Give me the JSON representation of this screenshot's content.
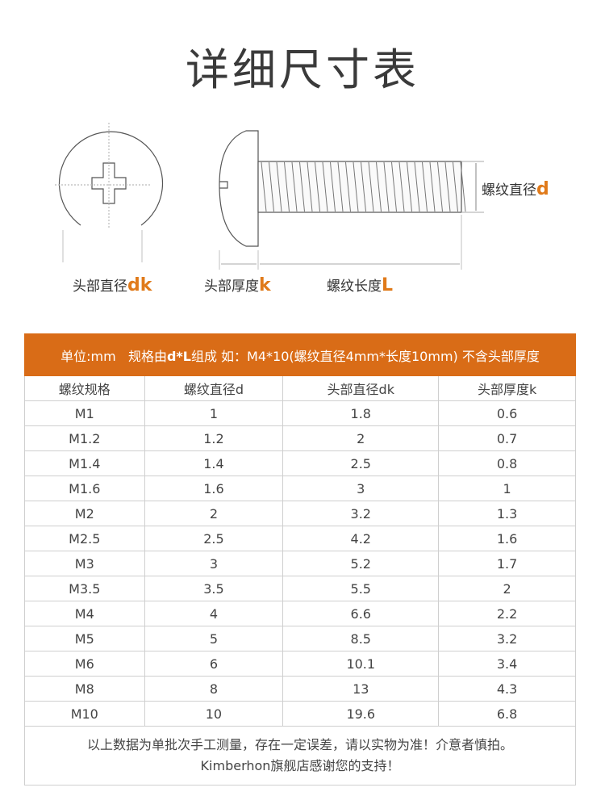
{
  "title": "详细尺寸表",
  "diagram": {
    "head_diameter_label": "头部直径",
    "head_diameter_symbol": "dk",
    "head_thickness_label": "头部厚度",
    "head_thickness_symbol": "k",
    "thread_length_label": "螺纹长度",
    "thread_length_symbol": "L",
    "thread_diameter_label": "螺纹直径",
    "thread_diameter_symbol": "d",
    "accent_color": "#e07a1a"
  },
  "table": {
    "note_prefix": "单位:mm   规格由",
    "note_bold": "d*L",
    "note_suffix": "组成  如：M4*10(螺纹直径4mm*长度10mm) 不含头部厚度",
    "header_color": "#d96c17",
    "columns": [
      "螺纹规格",
      "螺纹直径d",
      "头部直径dk",
      "头部厚度k"
    ],
    "rows": [
      [
        "M1",
        "1",
        "1.8",
        "0.6"
      ],
      [
        "M1.2",
        "1.2",
        "2",
        "0.7"
      ],
      [
        "M1.4",
        "1.4",
        "2.5",
        "0.8"
      ],
      [
        "M1.6",
        "1.6",
        "3",
        "1"
      ],
      [
        "M2",
        "2",
        "3.2",
        "1.3"
      ],
      [
        "M2.5",
        "2.5",
        "4.2",
        "1.6"
      ],
      [
        "M3",
        "3",
        "5.2",
        "1.7"
      ],
      [
        "M3.5",
        "3.5",
        "5.5",
        "2"
      ],
      [
        "M4",
        "4",
        "6.6",
        "2.2"
      ],
      [
        "M5",
        "5",
        "8.5",
        "3.2"
      ],
      [
        "M6",
        "6",
        "10.1",
        "3.4"
      ],
      [
        "M8",
        "8",
        "13",
        "4.3"
      ],
      [
        "M10",
        "10",
        "19.6",
        "6.8"
      ]
    ],
    "footer_line1": "以上数据为单批次手工测量，存在一定误差，请以实物为准！介意者慎拍。",
    "footer_line2": "Kimberhon旗舰店感谢您的支持！"
  }
}
